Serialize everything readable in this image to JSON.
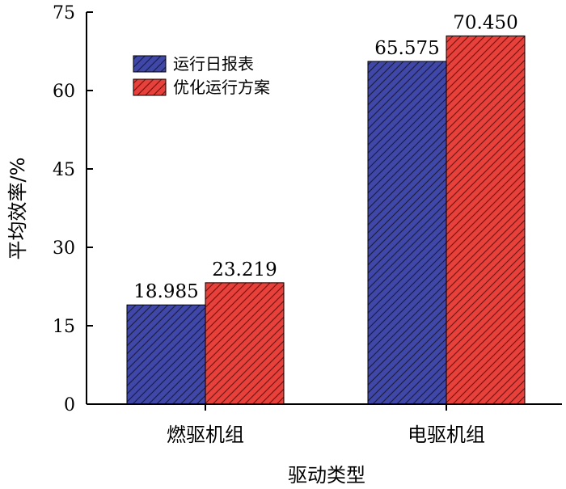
{
  "chart_data": {
    "type": "bar",
    "categories": [
      "燃驱机组",
      "电驱机组"
    ],
    "series": [
      {
        "name": "运行日报表",
        "values": [
          18.985,
          65.575
        ],
        "color": "#3f48a8",
        "hatch": "#1a1a3a"
      },
      {
        "name": "优化运行方案",
        "values": [
          23.219,
          70.45
        ],
        "color": "#e8403a",
        "hatch": "#6a1410"
      }
    ],
    "data_labels": [
      [
        "18.985",
        "65.575"
      ],
      [
        "23.219",
        "70.450"
      ]
    ],
    "xlabel": "驱动类型",
    "ylabel": "平均效率/%",
    "ylim": [
      0,
      75
    ],
    "yticks": [
      0,
      15,
      30,
      45,
      60,
      75
    ],
    "legend_position": "top-left",
    "grid": false
  }
}
